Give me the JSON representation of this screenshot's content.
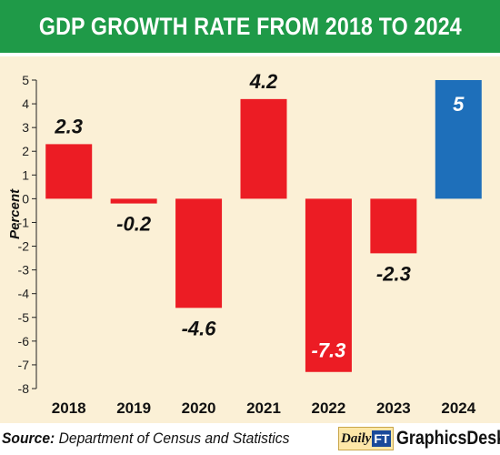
{
  "title": "GDP GROWTH RATE FROM 2018 TO 2024",
  "chart_data": {
    "type": "bar",
    "categories": [
      "2018",
      "2019",
      "2020",
      "2021",
      "2022",
      "2023",
      "2024"
    ],
    "values": [
      2.3,
      -0.2,
      -4.6,
      4.2,
      -7.3,
      -2.3,
      5
    ],
    "value_labels": [
      "2.3",
      "-0.2",
      "-4.6",
      "4.2",
      "-7.3",
      "-2.3",
      "5"
    ],
    "ylabel": "Percent",
    "ylim": [
      -8,
      5
    ],
    "yticks": [
      "5",
      "4",
      "3",
      "2",
      "1",
      "0",
      "-1",
      "-2",
      "-3",
      "-4",
      "-5",
      "-6",
      "-7",
      "-8"
    ],
    "colors": {
      "bar": "#ec1c24",
      "highlight_bar": "#1e6fba",
      "background": "#fbf0d6",
      "title_bar": "#1f9a48"
    },
    "highlight_category": "2024"
  },
  "footer": {
    "source_label": "Source:",
    "source_text": "Department of Census and Statistics",
    "brand_daily": "Daily",
    "brand_ft": "FT",
    "brand_desk": "GraphicsDesk"
  }
}
